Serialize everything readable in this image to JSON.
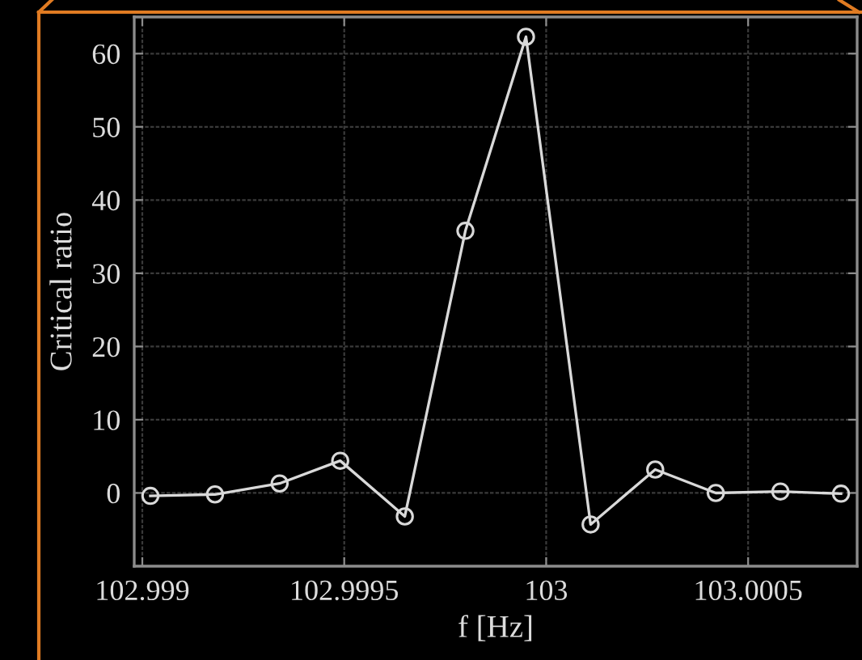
{
  "chart_data": {
    "type": "line",
    "xlabel": "f [Hz]",
    "ylabel": "Critical ratio",
    "x": [
      102.99902,
      102.99918,
      102.99934,
      102.99949,
      102.99965,
      102.9998,
      102.99995,
      103.00011,
      103.00027,
      103.00042,
      103.00058,
      103.00073
    ],
    "values": [
      -0.4,
      -0.2,
      1.3,
      4.4,
      -3.2,
      35.8,
      62.3,
      -4.3,
      3.2,
      0.0,
      0.2,
      -0.1
    ],
    "color": "#d9d9d9",
    "marker": "circle",
    "line_style": "solid",
    "xlim": [
      102.99898,
      103.00077
    ],
    "ylim": [
      -10,
      65
    ],
    "xticks": [
      102.999,
      102.9995,
      103,
      103.0005
    ],
    "yticks": [
      0,
      10,
      20,
      30,
      40,
      50,
      60
    ],
    "grid": true
  }
}
